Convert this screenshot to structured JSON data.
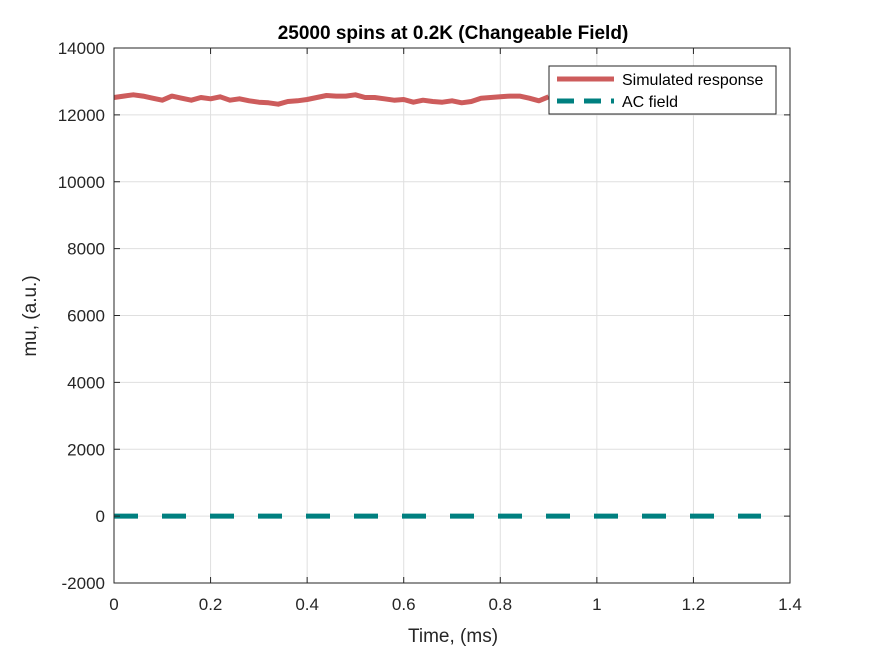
{
  "chart_data": {
    "type": "line",
    "title": "25000 spins at 0.2K (Changeable Field)",
    "xlabel": "Time, (ms)",
    "ylabel": "mu, (a.u.)",
    "xlim": [
      0,
      1.4
    ],
    "ylim": [
      -2000,
      14000
    ],
    "xticks": [
      0,
      0.2,
      0.4,
      0.6,
      0.8,
      1,
      1.2,
      1.4
    ],
    "xtick_labels": [
      "0",
      "0.2",
      "0.4",
      "0.6",
      "0.8",
      "1",
      "1.2",
      "1.4"
    ],
    "yticks": [
      -2000,
      0,
      2000,
      4000,
      6000,
      8000,
      10000,
      12000,
      14000
    ],
    "ytick_labels": [
      "-2000",
      "0",
      "2000",
      "4000",
      "6000",
      "8000",
      "10000",
      "12000",
      "14000"
    ],
    "grid": true,
    "legend_position": "top-right",
    "series": [
      {
        "name": "Simulated response",
        "color": "#cd5c5c",
        "style": "solid",
        "x": [
          0,
          0.02,
          0.04,
          0.06,
          0.08,
          0.1,
          0.12,
          0.14,
          0.16,
          0.18,
          0.2,
          0.22,
          0.24,
          0.26,
          0.28,
          0.3,
          0.32,
          0.34,
          0.36,
          0.38,
          0.4,
          0.42,
          0.44,
          0.46,
          0.48,
          0.5,
          0.52,
          0.54,
          0.56,
          0.58,
          0.6,
          0.62,
          0.64,
          0.66,
          0.68,
          0.7,
          0.72,
          0.74,
          0.76,
          0.78,
          0.8,
          0.82,
          0.84,
          0.86,
          0.88,
          0.9
        ],
        "y": [
          12520,
          12560,
          12600,
          12560,
          12500,
          12440,
          12560,
          12500,
          12440,
          12520,
          12480,
          12540,
          12440,
          12480,
          12420,
          12380,
          12360,
          12320,
          12400,
          12420,
          12460,
          12520,
          12580,
          12560,
          12560,
          12600,
          12520,
          12520,
          12480,
          12440,
          12460,
          12380,
          12440,
          12400,
          12380,
          12420,
          12360,
          12400,
          12500,
          12520,
          12540,
          12560,
          12560,
          12500,
          12420,
          12540
        ]
      },
      {
        "name": "AC field",
        "color": "#008080",
        "style": "dashed",
        "x": [
          0,
          1.34
        ],
        "y": [
          0,
          0
        ]
      }
    ]
  }
}
